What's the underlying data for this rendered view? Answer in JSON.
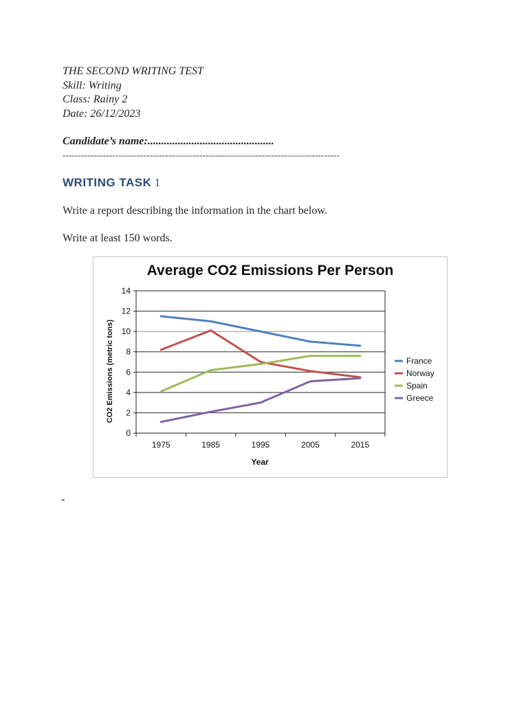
{
  "header": {
    "title": "THE SECOND WRITING TEST",
    "skill": "Skill: Writing",
    "class": "Class: Rainy 2",
    "date": "Date: 26/12/2023"
  },
  "candidate": "Candidate’s name:..............................................",
  "separator": "-----------------------------------------------------------------------------------------",
  "task": {
    "label": "WRITING TASK",
    "number": "1",
    "instruction": "Write a report describing the information in the chart below.",
    "word_limit": "Write at least 150 words."
  },
  "trailing_mark": "-",
  "chart_data": {
    "type": "line",
    "title": "Average CO2 Emissions Per Person",
    "xlabel": "Year",
    "ylabel": "CO2 Emissions (metric tons)",
    "categories": [
      "1975",
      "1985",
      "1995",
      "2005",
      "2015"
    ],
    "ylim": [
      0,
      14
    ],
    "yticks": [
      0,
      2,
      4,
      6,
      8,
      10,
      12,
      14
    ],
    "grid": true,
    "legend_position": "right",
    "series": [
      {
        "name": "France",
        "color": "#4f81bd",
        "values": [
          11.5,
          11.0,
          10.0,
          9.0,
          8.6
        ]
      },
      {
        "name": "Norway",
        "color": "#c0504d",
        "values": [
          8.2,
          10.1,
          7.0,
          6.1,
          5.5
        ]
      },
      {
        "name": "Spain",
        "color": "#9bbb59",
        "values": [
          4.1,
          6.2,
          6.8,
          7.6,
          7.6
        ]
      },
      {
        "name": "Greece",
        "color": "#8064a2",
        "values": [
          1.1,
          2.1,
          3.0,
          5.1,
          5.4
        ]
      }
    ]
  }
}
